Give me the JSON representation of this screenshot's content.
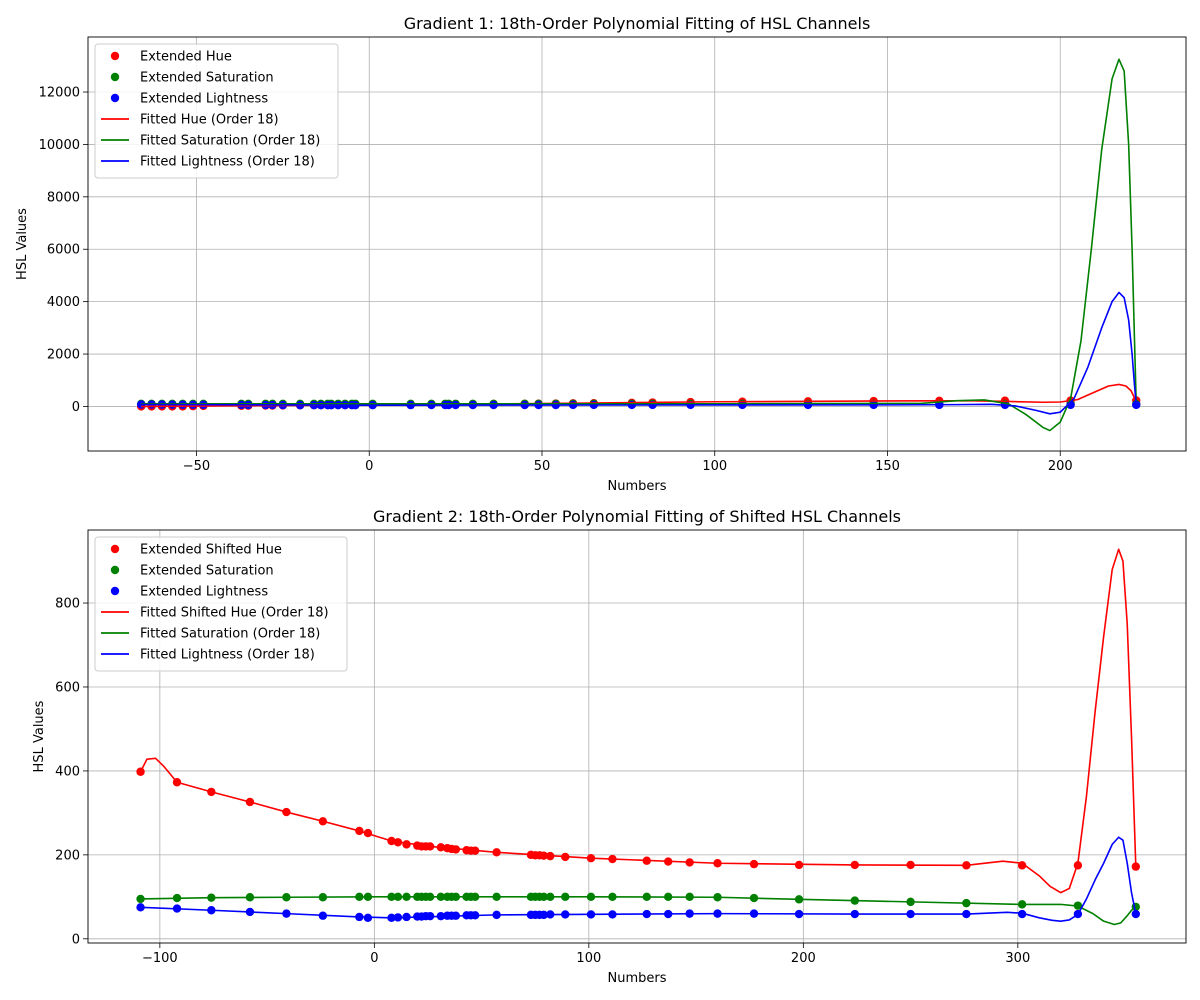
{
  "chart_data": [
    {
      "type": "scatter",
      "title": "Gradient 1: 18th-Order Polynomial Fitting of HSL Channels",
      "xlabel": "Numbers",
      "ylabel": "HSL Values",
      "xlim": [
        -81.4,
        236.4
      ],
      "ylim": [
        -1700,
        14100
      ],
      "xticks": [
        -50,
        0,
        50,
        100,
        150,
        200
      ],
      "yticks": [
        0,
        2000,
        4000,
        6000,
        8000,
        10000,
        12000
      ],
      "grid": true,
      "legend_position": "upper left",
      "colors": {
        "hue": "#ff0000",
        "saturation": "#008000",
        "lightness": "#0000ff"
      },
      "x": [
        -66,
        -63,
        -60,
        -57,
        -54,
        -51,
        -48,
        -37,
        -35,
        -30,
        -28,
        -25,
        -20,
        -16,
        -14,
        -12,
        -11,
        -9,
        -7,
        -5,
        -4,
        1,
        12,
        18,
        22,
        23,
        25,
        30,
        36,
        45,
        49,
        54,
        59,
        65,
        76,
        82,
        93,
        108,
        127,
        146,
        165,
        184,
        203,
        222
      ],
      "series": [
        {
          "name": "Extended Hue",
          "kind": "points",
          "color": "#ff0000",
          "values": [
            0,
            0,
            0,
            0,
            0,
            10,
            20,
            25,
            30,
            35,
            35,
            40,
            45,
            48,
            50,
            52,
            53,
            55,
            56,
            57,
            58,
            60,
            70,
            80,
            85,
            86,
            88,
            90,
            95,
            100,
            105,
            110,
            118,
            125,
            140,
            150,
            165,
            180,
            195,
            205,
            215,
            220,
            225,
            230
          ]
        },
        {
          "name": "Extended Saturation",
          "kind": "points",
          "color": "#008000",
          "values": [
            100,
            100,
            100,
            100,
            100,
            100,
            100,
            100,
            100,
            100,
            100,
            100,
            100,
            100,
            100,
            100,
            100,
            100,
            100,
            100,
            100,
            100,
            100,
            100,
            100,
            100,
            100,
            100,
            100,
            100,
            100,
            100,
            100,
            100,
            100,
            100,
            100,
            100,
            100,
            100,
            100,
            98,
            95,
            92
          ]
        },
        {
          "name": "Extended Lightness",
          "kind": "points",
          "color": "#0000ff",
          "values": [
            75,
            72,
            70,
            68,
            65,
            62,
            60,
            58,
            56,
            54,
            53,
            52,
            51,
            50,
            50,
            50,
            50,
            50,
            50,
            50,
            50,
            50,
            52,
            53,
            54,
            54,
            55,
            55,
            55,
            55,
            56,
            56,
            57,
            57,
            58,
            58,
            58,
            58,
            58,
            58,
            58,
            58,
            58,
            58
          ]
        },
        {
          "name": "Fitted Hue (Order 18)",
          "kind": "line",
          "color": "#ff0000",
          "x": [
            -66,
            -40,
            0,
            50,
            100,
            150,
            165,
            175,
            185,
            195,
            200,
            205,
            210,
            214,
            217,
            219,
            220.5,
            221.3,
            222
          ],
          "values": [
            0,
            25,
            60,
            110,
            180,
            210,
            215,
            215,
            190,
            160,
            170,
            260,
            550,
            780,
            840,
            780,
            600,
            380,
            230
          ]
        },
        {
          "name": "Fitted Saturation (Order 18)",
          "kind": "line",
          "color": "#008000",
          "x": [
            -66,
            0,
            100,
            160,
            170,
            178,
            185,
            190,
            195,
            197,
            200,
            203,
            206,
            209,
            212,
            215,
            217,
            218.5,
            219.8,
            220.8,
            221.5,
            222
          ],
          "values": [
            100,
            100,
            100,
            120,
            220,
            250,
            100,
            -300,
            -800,
            -920,
            -600,
            300,
            2500,
            6000,
            9800,
            12500,
            13250,
            12800,
            10000,
            6000,
            2500,
            90
          ]
        },
        {
          "name": "Fitted Lightness (Order 18)",
          "kind": "line",
          "color": "#0000ff",
          "x": [
            -66,
            0,
            100,
            150,
            170,
            180,
            187,
            193,
            197,
            200,
            204,
            208,
            212,
            215,
            217,
            218.5,
            219.8,
            220.8,
            221.5,
            222
          ],
          "values": [
            75,
            50,
            58,
            60,
            70,
            80,
            20,
            -150,
            -280,
            -220,
            300,
            1500,
            3000,
            4000,
            4350,
            4150,
            3300,
            2000,
            800,
            60
          ]
        }
      ]
    },
    {
      "type": "scatter",
      "title": "Gradient 2: 18th-Order Polynomial Fitting of Shifted HSL Channels",
      "xlabel": "Numbers",
      "ylabel": "HSL Values",
      "xlim": [
        -133.5,
        378.4
      ],
      "ylim": [
        -10,
        974
      ],
      "xticks": [
        -100,
        0,
        100,
        200,
        300
      ],
      "yticks": [
        0,
        200,
        400,
        600,
        800
      ],
      "grid": true,
      "legend_position": "upper left",
      "colors": {
        "hue": "#ff0000",
        "saturation": "#008000",
        "lightness": "#0000ff"
      },
      "x": [
        -109,
        -92,
        -76,
        -58,
        -41,
        -24,
        -7,
        -3,
        8,
        11,
        15,
        20,
        22,
        24,
        26,
        31,
        34,
        36,
        38,
        43,
        45,
        47,
        57,
        73,
        75,
        77,
        79,
        82,
        89,
        101,
        111,
        127,
        137,
        147,
        160,
        177,
        198,
        224,
        250,
        276,
        302,
        328,
        355
      ],
      "series": [
        {
          "name": "Extended Shifted Hue",
          "kind": "points",
          "color": "#ff0000",
          "values": [
            398,
            373,
            350,
            326,
            302,
            280,
            257,
            252,
            233,
            230,
            225,
            222,
            220,
            220,
            220,
            218,
            216,
            214,
            213,
            211,
            210,
            210,
            206,
            200,
            199,
            199,
            198,
            197,
            195,
            192,
            190,
            186,
            184,
            182,
            180,
            178,
            176,
            176,
            176,
            175,
            175,
            175,
            172
          ]
        },
        {
          "name": "Extended Saturation",
          "kind": "points",
          "color": "#008000",
          "values": [
            95,
            97,
            98,
            99,
            99,
            99,
            100,
            100,
            100,
            100,
            100,
            100,
            100,
            100,
            100,
            100,
            100,
            100,
            100,
            100,
            100,
            100,
            100,
            100,
            100,
            100,
            100,
            100,
            100,
            100,
            100,
            100,
            100,
            100,
            99,
            97,
            94,
            91,
            88,
            85,
            82,
            79,
            76
          ]
        },
        {
          "name": "Extended Lightness",
          "kind": "points",
          "color": "#0000ff",
          "values": [
            75,
            72,
            68,
            64,
            60,
            55,
            52,
            50,
            50,
            51,
            52,
            53,
            53,
            54,
            54,
            54,
            55,
            55,
            55,
            56,
            56,
            56,
            57,
            57,
            57,
            57,
            57,
            58,
            58,
            58,
            58,
            59,
            59,
            60,
            60,
            60,
            59,
            59,
            59,
            59,
            59,
            59,
            59
          ]
        },
        {
          "name": "Fitted Shifted Hue (Order 18)",
          "kind": "line",
          "color": "#ff0000",
          "x": [
            -109,
            -106,
            -102,
            -98,
            -92,
            -76,
            -58,
            -41,
            -24,
            -7,
            8,
            26,
            57,
            101,
            160,
            224,
            276,
            293,
            302,
            310,
            315,
            320,
            324,
            328,
            332,
            336,
            340,
            344,
            347,
            349,
            351,
            353,
            354.3,
            355
          ],
          "values": [
            398,
            428,
            430,
            410,
            373,
            350,
            326,
            302,
            280,
            257,
            233,
            220,
            206,
            192,
            180,
            176,
            175,
            185,
            180,
            150,
            125,
            110,
            120,
            180,
            340,
            540,
            720,
            880,
            928,
            900,
            750,
            480,
            280,
            172
          ]
        },
        {
          "name": "Fitted Saturation (Order 18)",
          "kind": "line",
          "color": "#008000",
          "x": [
            -109,
            -76,
            -41,
            0,
            100,
            160,
            198,
            250,
            302,
            320,
            328,
            335,
            340,
            345,
            348,
            351,
            353,
            355
          ],
          "values": [
            95,
            98,
            99,
            100,
            100,
            99,
            94,
            88,
            82,
            82,
            78,
            60,
            42,
            34,
            38,
            55,
            68,
            76
          ]
        },
        {
          "name": "Fitted Lightness (Order 18)",
          "kind": "line",
          "color": "#0000ff",
          "x": [
            -109,
            -76,
            -41,
            -7,
            8,
            57,
            160,
            224,
            276,
            295,
            302,
            310,
            316,
            320,
            324,
            328,
            332,
            336,
            340,
            344,
            347,
            349,
            351,
            353,
            355
          ],
          "values": [
            75,
            68,
            60,
            52,
            50,
            57,
            60,
            59,
            59,
            63,
            61,
            50,
            44,
            42,
            45,
            58,
            95,
            140,
            180,
            225,
            242,
            235,
            180,
            110,
            59
          ]
        }
      ]
    }
  ]
}
